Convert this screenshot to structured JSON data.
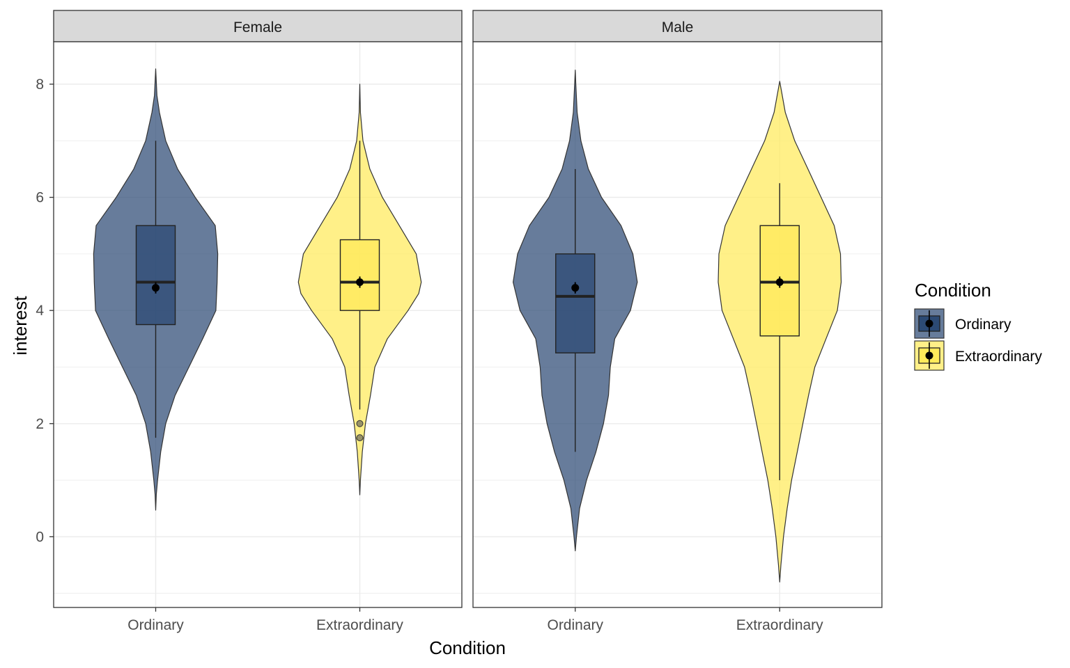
{
  "chart_data": {
    "type": "violin",
    "xlabel": "Condition",
    "ylabel": "interest",
    "ylim": [
      -1.25,
      8.75
    ],
    "y_ticks": [
      0,
      2,
      4,
      6,
      8
    ],
    "categories": [
      "Ordinary",
      "Extraordinary"
    ],
    "legend": {
      "title": "Condition",
      "position": "right",
      "entries": [
        {
          "label": "Ordinary",
          "color": "#2c4a74"
        },
        {
          "label": "Extraordinary",
          "color": "#ffea5a"
        }
      ]
    },
    "grid": true,
    "panels": [
      {
        "label": "Female",
        "groups": [
          {
            "category": "Ordinary",
            "color": "#2c4a74",
            "box": {
              "lower_whisker": 1.75,
              "q1": 3.75,
              "median": 4.5,
              "q3": 5.5,
              "upper_whisker": 7.0
            },
            "mean": 4.4,
            "mean_ci": [
              4.3,
              4.5
            ],
            "outliers": [],
            "density": [
              [
                0.47,
                0.0
              ],
              [
                0.75,
                0.01
              ],
              [
                1.0,
                0.03
              ],
              [
                1.5,
                0.08
              ],
              [
                2.0,
                0.16
              ],
              [
                2.5,
                0.31
              ],
              [
                3.0,
                0.53
              ],
              [
                3.5,
                0.75
              ],
              [
                4.0,
                0.96
              ],
              [
                4.5,
                0.98
              ],
              [
                5.0,
                0.99
              ],
              [
                5.5,
                0.95
              ],
              [
                6.0,
                0.63
              ],
              [
                6.5,
                0.35
              ],
              [
                7.0,
                0.16
              ],
              [
                7.5,
                0.06
              ],
              [
                7.8,
                0.02
              ],
              [
                8.27,
                0.0
              ]
            ]
          },
          {
            "category": "Extraordinary",
            "color": "#ffea5a",
            "box": {
              "lower_whisker": 2.25,
              "q1": 4.0,
              "median": 4.5,
              "q3": 5.25,
              "upper_whisker": 7.0
            },
            "mean": 4.5,
            "mean_ci": [
              4.4,
              4.6
            ],
            "outliers": [
              2.0,
              1.75
            ],
            "density": [
              [
                0.74,
                0.0
              ],
              [
                1.0,
                0.01
              ],
              [
                1.5,
                0.04
              ],
              [
                2.0,
                0.09
              ],
              [
                2.5,
                0.17
              ],
              [
                3.0,
                0.24
              ],
              [
                3.5,
                0.44
              ],
              [
                4.0,
                0.77
              ],
              [
                4.3,
                0.94
              ],
              [
                4.5,
                0.98
              ],
              [
                5.0,
                0.9
              ],
              [
                5.5,
                0.63
              ],
              [
                6.0,
                0.36
              ],
              [
                6.5,
                0.16
              ],
              [
                7.0,
                0.05
              ],
              [
                7.5,
                0.01
              ],
              [
                8.0,
                0.0
              ]
            ]
          }
        ]
      },
      {
        "label": "Male",
        "groups": [
          {
            "category": "Ordinary",
            "color": "#2c4a74",
            "box": {
              "lower_whisker": 1.5,
              "q1": 3.25,
              "median": 4.25,
              "q3": 5.0,
              "upper_whisker": 6.5
            },
            "mean": 4.4,
            "mean_ci": [
              4.3,
              4.5
            ],
            "outliers": [],
            "density": [
              [
                -0.25,
                0.0
              ],
              [
                0.0,
                0.02
              ],
              [
                0.5,
                0.07
              ],
              [
                1.0,
                0.18
              ],
              [
                1.5,
                0.33
              ],
              [
                2.0,
                0.45
              ],
              [
                2.5,
                0.53
              ],
              [
                3.0,
                0.56
              ],
              [
                3.5,
                0.63
              ],
              [
                4.0,
                0.88
              ],
              [
                4.5,
                0.99
              ],
              [
                5.0,
                0.92
              ],
              [
                5.5,
                0.73
              ],
              [
                6.0,
                0.42
              ],
              [
                6.5,
                0.21
              ],
              [
                7.0,
                0.09
              ],
              [
                7.5,
                0.03
              ],
              [
                8.0,
                0.01
              ],
              [
                8.25,
                0.0
              ]
            ]
          },
          {
            "category": "Extraordinary",
            "color": "#ffea5a",
            "box": {
              "lower_whisker": 1.0,
              "q1": 3.55,
              "median": 4.5,
              "q3": 5.5,
              "upper_whisker": 6.25
            },
            "mean": 4.5,
            "mean_ci": [
              4.4,
              4.6
            ],
            "outliers": [],
            "density": [
              [
                -0.8,
                0.0
              ],
              [
                -0.5,
                0.02
              ],
              [
                0.0,
                0.06
              ],
              [
                0.5,
                0.12
              ],
              [
                1.0,
                0.19
              ],
              [
                1.5,
                0.28
              ],
              [
                2.0,
                0.37
              ],
              [
                2.5,
                0.46
              ],
              [
                3.0,
                0.56
              ],
              [
                3.5,
                0.74
              ],
              [
                4.0,
                0.92
              ],
              [
                4.5,
                0.98
              ],
              [
                5.0,
                0.97
              ],
              [
                5.5,
                0.87
              ],
              [
                6.0,
                0.66
              ],
              [
                6.5,
                0.45
              ],
              [
                7.0,
                0.24
              ],
              [
                7.5,
                0.09
              ],
              [
                8.05,
                0.0
              ]
            ]
          }
        ]
      }
    ]
  }
}
